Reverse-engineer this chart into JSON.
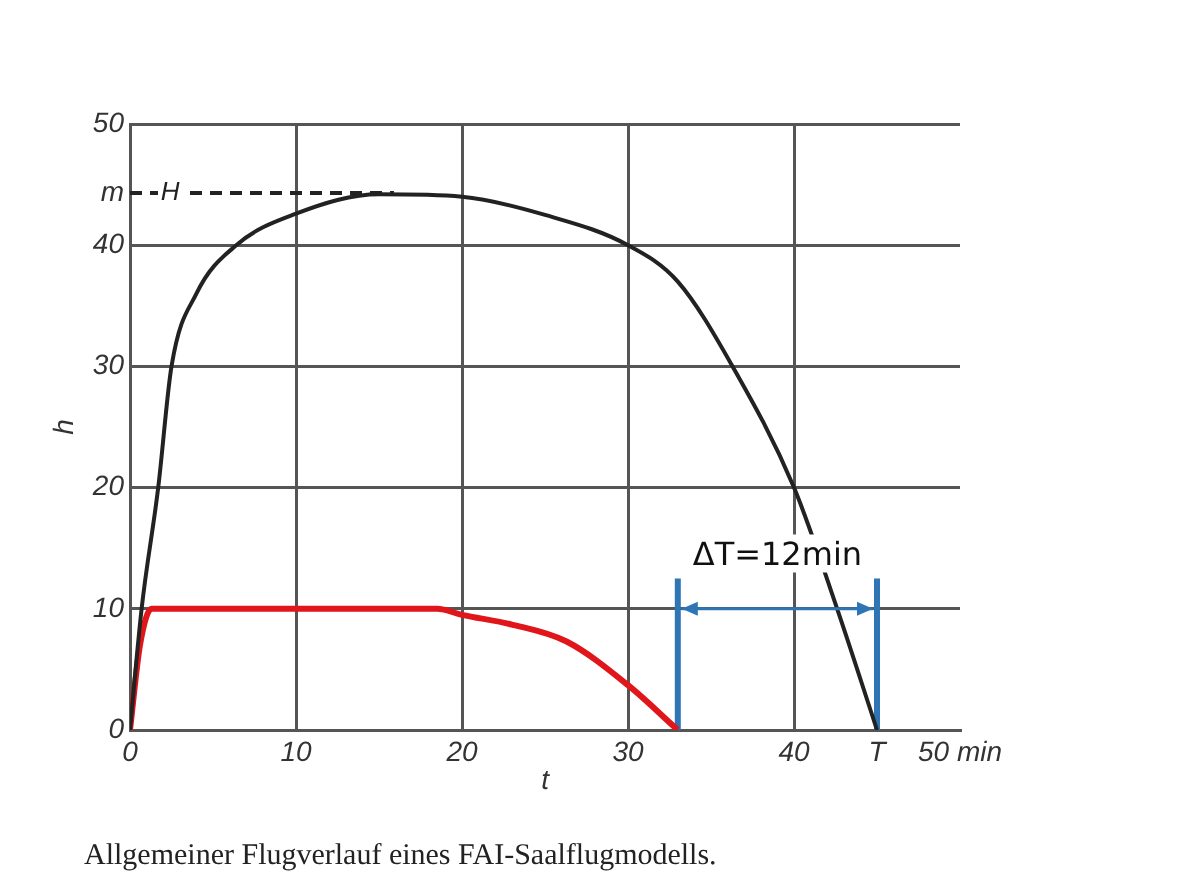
{
  "chart_data": {
    "type": "line",
    "xlabel": "t",
    "ylabel": "h",
    "xlim": [
      0,
      50
    ],
    "ylim": [
      0,
      50
    ],
    "xticks": [
      0,
      10,
      20,
      30,
      40,
      {
        "value": 45,
        "label": "T"
      },
      {
        "value": 50,
        "label": "50 min"
      }
    ],
    "yticks": [
      0,
      10,
      20,
      30,
      40,
      {
        "value": 44.3,
        "label": "m"
      },
      50
    ],
    "grid": true,
    "legend": false,
    "marker": "none",
    "series": [
      {
        "color": "#222222",
        "x": [
          0,
          0.7,
          1.7,
          2.5,
          4,
          6.4,
          10,
          15,
          20,
          25,
          30,
          33,
          36.3,
          40,
          42.6,
          45
        ],
        "values": [
          0,
          10,
          20,
          30,
          36,
          40,
          42.6,
          44.2,
          44,
          42.5,
          40,
          37,
          30,
          20,
          10,
          0
        ]
      },
      {
        "color": "#e0161b",
        "x": [
          0,
          0.6,
          1.3,
          18.5,
          20,
          23,
          26.3,
          30,
          33
        ],
        "values": [
          0,
          7,
          10,
          10,
          9.5,
          8.7,
          7.3,
          3.7,
          0
        ]
      },
      {
        "name": "H",
        "color": "#222222",
        "line_style": "dashed",
        "x": [
          0,
          15.9
        ],
        "values": [
          44.3,
          44.3
        ]
      },
      {
        "color": "#2e75b6",
        "x": [
          33,
          33
        ],
        "values": [
          0,
          12.5
        ]
      },
      {
        "color": "#2e75b6",
        "x": [
          45,
          45
        ],
        "values": [
          0,
          12.5
        ]
      }
    ],
    "annotations": [
      "ΔT=12min",
      "Allgemeiner Flugverlauf eines FAI-Saalflugmodells."
    ]
  }
}
